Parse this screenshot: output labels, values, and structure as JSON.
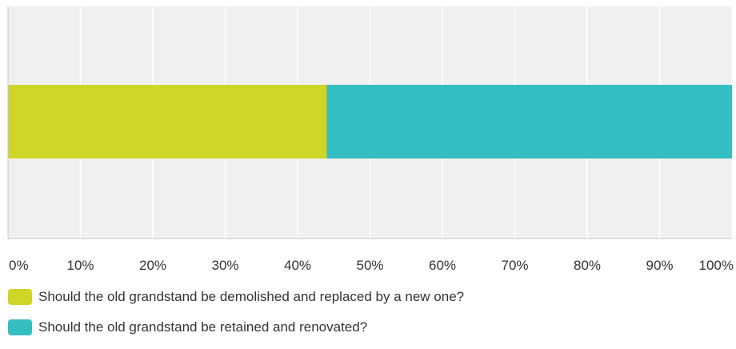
{
  "chart_data": {
    "type": "bar",
    "orientation": "horizontal",
    "stacked": true,
    "categories": [
      ""
    ],
    "series": [
      {
        "name": "Should the old grandstand be demolished and replaced by a new one?",
        "values": [
          44
        ],
        "color": "#d0d628"
      },
      {
        "name": "Should the old grandstand be retained and renovated?",
        "values": [
          56
        ],
        "color": "#35bec1"
      }
    ],
    "xlim": [
      0,
      100
    ],
    "x_ticks": [
      "0%",
      "10%",
      "20%",
      "30%",
      "40%",
      "50%",
      "60%",
      "70%",
      "80%",
      "90%",
      "100%"
    ],
    "grid": true,
    "legend_position": "bottom",
    "title": "",
    "xlabel": "",
    "ylabel": ""
  },
  "colors": {
    "plot_background": "#f0f0f0",
    "gridline": "#ffffff",
    "axis": "#c8c8c8"
  }
}
